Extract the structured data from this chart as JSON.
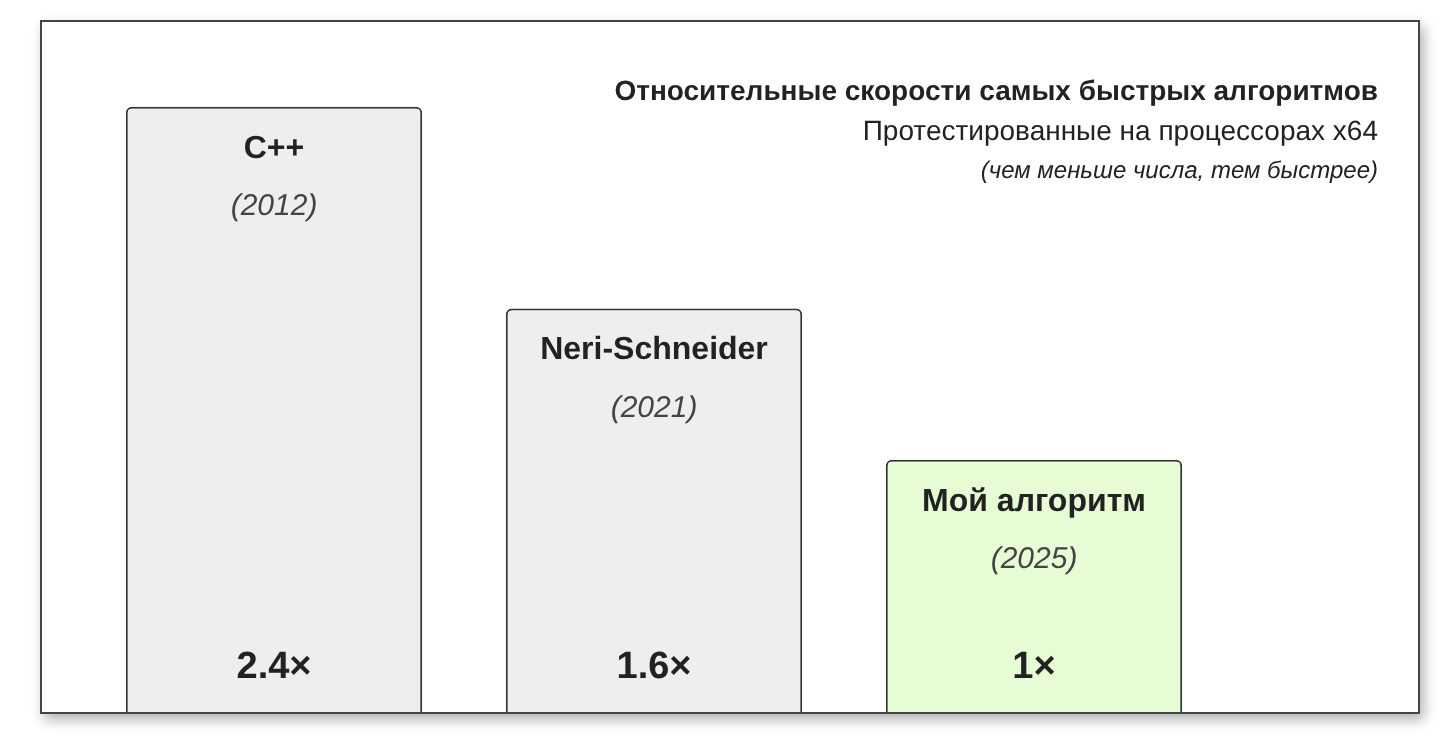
{
  "chart_data": {
    "type": "bar",
    "title": "Относительные скорости самых быстрых алгоритмов",
    "subtitle": "Протестированные на процессорах x64",
    "categories": [
      "C++",
      "Neri-Schneider",
      "Мой алгоритм"
    ],
    "values": [
      2.4,
      1.6,
      1
    ],
    "colors": [
      "#eeeeee",
      "#eeeeee",
      "#e5fcd5"
    ],
    "value_labels": [
      "2.4×",
      "1.6×",
      "1×"
    ],
    "annotations": [
      "(2012)",
      "(2021)",
      "(2025)",
      "(чем меньше числа, тем быстрее)"
    ]
  }
}
